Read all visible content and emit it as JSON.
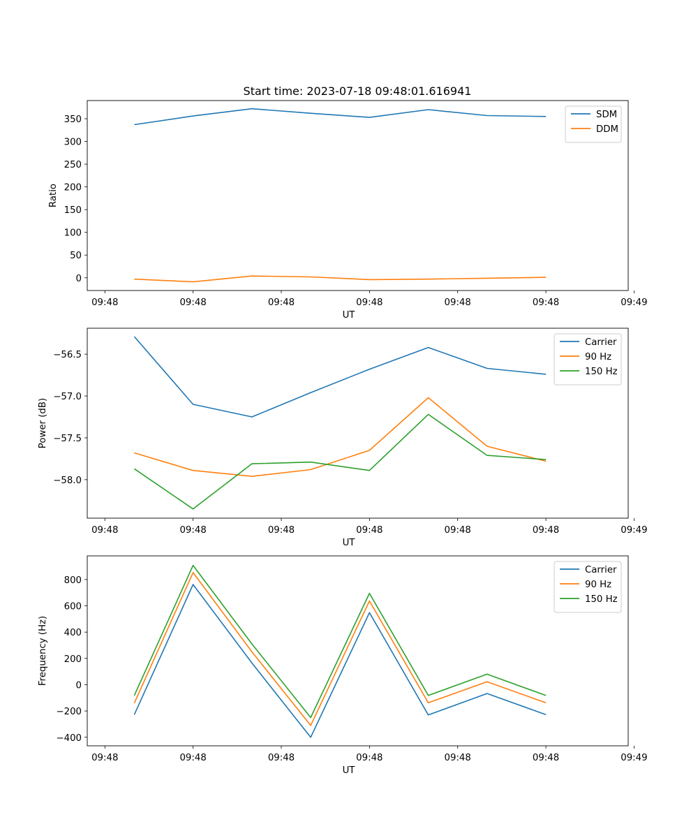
{
  "figure": {
    "title": "Start time: 2023-07-18 09:48:01.616941"
  },
  "colors": {
    "blue": "#1f77b4",
    "orange": "#ff7f0e",
    "green": "#2ca02c",
    "legend_border": "#cccccc"
  },
  "chart_data": [
    {
      "type": "line",
      "title": "Start time: 2023-07-18 09:48:01.616941",
      "xlabel": "UT",
      "ylabel": "Ratio",
      "x": [
        1,
        2,
        3,
        4,
        5,
        6,
        7,
        8
      ],
      "xlim": [
        0.2,
        9.4
      ],
      "x_ticks": [
        0.5,
        2.0,
        3.5,
        5.0,
        6.5,
        8.0,
        9.5
      ],
      "x_tick_labels": [
        "09:48",
        "09:48",
        "09:48",
        "09:48",
        "09:48",
        "09:48",
        "09:49"
      ],
      "ylim": [
        -28,
        390
      ],
      "y_ticks": [
        0,
        50,
        100,
        150,
        200,
        250,
        300,
        350
      ],
      "y_tick_labels": [
        "0",
        "50",
        "100",
        "150",
        "200",
        "250",
        "300",
        "350"
      ],
      "legend_location": "top-right",
      "series": [
        {
          "name": "SDM",
          "color": "#1f77b4",
          "values": [
            337,
            356,
            372,
            362,
            353,
            370,
            357,
            355
          ]
        },
        {
          "name": "DDM",
          "color": "#ff7f0e",
          "values": [
            -3,
            -9,
            4,
            2,
            -4,
            -3,
            -1,
            1
          ]
        }
      ]
    },
    {
      "type": "line",
      "title": "",
      "xlabel": "UT",
      "ylabel": "Power (dB)",
      "x": [
        1,
        2,
        3,
        4,
        5,
        6,
        7,
        8
      ],
      "xlim": [
        0.2,
        9.4
      ],
      "x_ticks": [
        0.5,
        2.0,
        3.5,
        5.0,
        6.5,
        8.0,
        9.5
      ],
      "x_tick_labels": [
        "09:48",
        "09:48",
        "09:48",
        "09:48",
        "09:48",
        "09:48",
        "09:49"
      ],
      "ylim": [
        -58.46,
        -56.19
      ],
      "y_ticks": [
        -58.0,
        -57.5,
        -57.0,
        -56.5
      ],
      "y_tick_labels": [
        "−58.0",
        "−57.5",
        "−57.0",
        "−56.5"
      ],
      "legend_location": "top-right",
      "series": [
        {
          "name": "Carrier",
          "color": "#1f77b4",
          "values": [
            -56.29,
            -57.1,
            -57.25,
            -56.96,
            -56.68,
            -56.42,
            -56.67,
            -56.74
          ]
        },
        {
          "name": "90 Hz",
          "color": "#ff7f0e",
          "values": [
            -57.68,
            -57.89,
            -57.96,
            -57.88,
            -57.65,
            -57.02,
            -57.6,
            -57.78
          ]
        },
        {
          "name": "150 Hz",
          "color": "#2ca02c",
          "values": [
            -57.87,
            -58.35,
            -57.81,
            -57.79,
            -57.89,
            -57.22,
            -57.71,
            -57.76
          ]
        }
      ]
    },
    {
      "type": "line",
      "title": "",
      "xlabel": "UT",
      "ylabel": "Frequency (Hz)",
      "x": [
        1,
        2,
        3,
        4,
        5,
        6,
        7,
        8
      ],
      "xlim": [
        0.2,
        9.4
      ],
      "x_ticks": [
        0.5,
        2.0,
        3.5,
        5.0,
        6.5,
        8.0,
        9.5
      ],
      "x_tick_labels": [
        "09:48",
        "09:48",
        "09:48",
        "09:48",
        "09:48",
        "09:48",
        "09:49"
      ],
      "ylim": [
        -465,
        980
      ],
      "y_ticks": [
        -400,
        -200,
        0,
        200,
        400,
        600,
        800
      ],
      "y_tick_labels": [
        "−400",
        "−200",
        "0",
        "200",
        "400",
        "600",
        "800"
      ],
      "legend_location": "top-right",
      "series": [
        {
          "name": "Carrier",
          "color": "#1f77b4",
          "values": [
            -228,
            762,
            165,
            -400,
            548,
            -230,
            -67,
            -228
          ]
        },
        {
          "name": "90 Hz",
          "color": "#ff7f0e",
          "values": [
            -140,
            853,
            250,
            -310,
            637,
            -138,
            22,
            -138
          ]
        },
        {
          "name": "150 Hz",
          "color": "#2ca02c",
          "values": [
            -82,
            908,
            310,
            -250,
            695,
            -82,
            80,
            -82
          ]
        }
      ]
    }
  ]
}
